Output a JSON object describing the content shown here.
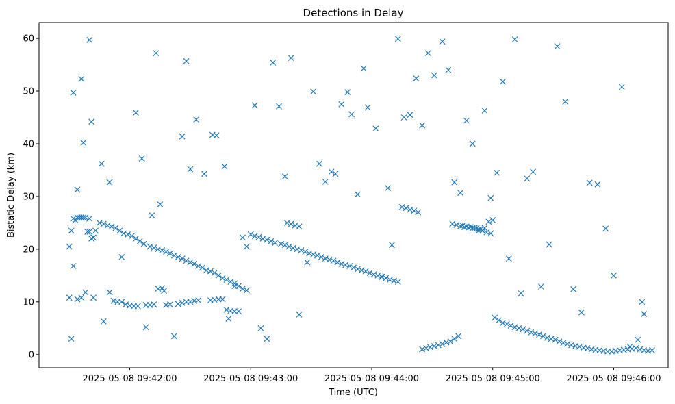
{
  "chart_data": {
    "type": "scatter",
    "title": "Detections in Delay",
    "xlabel": "Time (UTC)",
    "ylabel": "Bistatic Delay (km)",
    "x_unit": "time (UTC), 2025-05-08",
    "xlim": [
      "2025-05-08 09:41:15",
      "2025-05-08 09:46:27"
    ],
    "ylim": [
      -2.5,
      63
    ],
    "x_ticks": [
      "2025-05-08 09:42:00",
      "2025-05-08 09:43:00",
      "2025-05-08 09:44:00",
      "2025-05-08 09:45:00",
      "2025-05-08 09:46:00"
    ],
    "y_ticks": [
      0,
      10,
      20,
      30,
      40,
      50,
      60
    ],
    "marker": "x",
    "color": "#1f77b4",
    "grid": false,
    "series": [
      {
        "x": [
          "09:41:30",
          "09:41:31",
          "09:41:32",
          "09:41:33",
          "09:41:34",
          "09:41:35",
          "09:41:36",
          "09:41:37",
          "09:41:38",
          "09:41:39",
          "09:41:40",
          "09:41:41",
          "09:41:42",
          "09:41:43",
          "09:41:45",
          "09:41:47",
          "09:41:49",
          "09:41:51",
          "09:41:53",
          "09:41:55",
          "09:41:57",
          "09:41:59",
          "09:42:01",
          "09:42:03",
          "09:42:05",
          "09:42:07",
          "09:42:10",
          "09:42:12",
          "09:42:14",
          "09:42:16",
          "09:42:18",
          "09:42:20",
          "09:42:22",
          "09:42:24",
          "09:42:26",
          "09:42:28",
          "09:42:30",
          "09:42:32",
          "09:42:34",
          "09:42:36",
          "09:42:38",
          "09:42:40",
          "09:42:42",
          "09:42:44",
          "09:42:46",
          "09:42:48",
          "09:42:50",
          "09:42:52",
          "09:42:54",
          "09:42:56",
          "09:42:58",
          "09:43:00",
          "09:43:02",
          "09:43:04",
          "09:43:06",
          "09:43:08",
          "09:43:10",
          "09:43:12",
          "09:43:15",
          "09:43:17",
          "09:43:19",
          "09:43:21",
          "09:43:23",
          "09:43:25",
          "09:43:27",
          "09:43:29",
          "09:43:31",
          "09:43:33",
          "09:43:35",
          "09:43:37",
          "09:43:39",
          "09:43:41",
          "09:43:43",
          "09:43:45",
          "09:43:47",
          "09:43:49",
          "09:43:51",
          "09:43:53",
          "09:43:55",
          "09:43:57",
          "09:43:59",
          "09:44:01",
          "09:44:03",
          "09:44:05",
          "09:44:07",
          "09:44:09",
          "09:44:11",
          "09:44:13",
          "09:44:15",
          "09:44:17",
          "09:44:19",
          "09:44:21",
          "09:44:23",
          "09:44:25",
          "09:44:27",
          "09:44:29",
          "09:44:31",
          "09:44:33",
          "09:44:35",
          "09:44:37",
          "09:44:39",
          "09:44:41",
          "09:44:43",
          "09:44:45",
          "09:44:47",
          "09:44:49",
          "09:44:51",
          "09:44:53",
          "09:44:55",
          "09:44:57",
          "09:44:59",
          "09:45:01",
          "09:45:03",
          "09:45:05",
          "09:45:07",
          "09:45:09",
          "09:45:11",
          "09:45:13",
          "09:45:15",
          "09:45:17",
          "09:45:19",
          "09:45:21",
          "09:45:23",
          "09:45:25",
          "09:45:27",
          "09:45:29",
          "09:45:31",
          "09:45:33",
          "09:45:35",
          "09:45:37",
          "09:45:39",
          "09:45:41",
          "09:45:43",
          "09:45:45",
          "09:45:47",
          "09:45:49",
          "09:45:51",
          "09:45:53",
          "09:45:55",
          "09:45:57",
          "09:45:59",
          "09:46:01",
          "09:46:03",
          "09:46:05",
          "09:46:07",
          "09:46:09",
          "09:46:11",
          "09:46:13",
          "09:46:15",
          "09:46:17",
          "09:46:19",
          "09:41:30",
          "09:41:32",
          "09:41:34",
          "09:41:36",
          "09:41:38",
          "09:41:40",
          "09:41:42",
          "09:41:50",
          "09:41:52",
          "09:41:54",
          "09:41:56",
          "09:41:58",
          "09:42:00",
          "09:42:02",
          "09:42:04",
          "09:42:08",
          "09:42:10",
          "09:42:12",
          "09:42:14",
          "09:42:16",
          "09:42:18",
          "09:42:20",
          "09:42:24",
          "09:42:26",
          "09:42:28",
          "09:42:30",
          "09:42:32",
          "09:42:34",
          "09:42:40",
          "09:42:42",
          "09:42:44",
          "09:42:46",
          "09:42:48",
          "09:42:50",
          "09:42:52",
          "09:42:54",
          "09:43:18",
          "09:43:20",
          "09:43:22",
          "09:43:24",
          "09:44:40",
          "09:44:42",
          "09:44:44",
          "09:44:46",
          "09:44:48",
          "09:44:50",
          "09:44:52",
          "09:44:54",
          "09:44:56",
          "09:44:58",
          "09:45:00",
          "09:41:40",
          "09:41:36",
          "09:41:32",
          "09:41:31",
          "09:41:34",
          "09:41:37",
          "09:41:36",
          "09:41:41",
          "09:41:46",
          "09:41:47",
          "09:41:50",
          "09:41:56",
          "09:42:03",
          "09:42:06",
          "09:42:08",
          "09:42:11",
          "09:42:13",
          "09:42:15",
          "09:42:17",
          "09:42:22",
          "09:42:26",
          "09:42:28",
          "09:42:30",
          "09:42:33",
          "09:42:37",
          "09:42:41",
          "09:42:43",
          "09:42:47",
          "09:42:49",
          "09:42:52",
          "09:42:56",
          "09:42:58",
          "09:43:02",
          "09:43:05",
          "09:43:08",
          "09:43:11",
          "09:43:14",
          "09:43:17",
          "09:43:20",
          "09:43:24",
          "09:43:28",
          "09:43:31",
          "09:43:34",
          "09:43:37",
          "09:43:40",
          "09:43:42",
          "09:43:45",
          "09:43:48",
          "09:43:50",
          "09:43:53",
          "09:43:56",
          "09:43:58",
          "09:44:02",
          "09:44:05",
          "09:44:08",
          "09:44:10",
          "09:44:13",
          "09:44:16",
          "09:44:19",
          "09:44:22",
          "09:44:25",
          "09:44:28",
          "09:44:31",
          "09:44:35",
          "09:44:38",
          "09:44:41",
          "09:44:44",
          "09:44:47",
          "09:44:50",
          "09:44:53",
          "09:44:56",
          "09:44:59",
          "09:45:02",
          "09:45:05",
          "09:45:08",
          "09:45:11",
          "09:45:14",
          "09:45:17",
          "09:45:20",
          "09:45:24",
          "09:45:28",
          "09:45:32",
          "09:45:36",
          "09:45:40",
          "09:45:44",
          "09:45:48",
          "09:45:52",
          "09:45:56",
          "09:46:00",
          "09:46:04",
          "09:46:08",
          "09:46:12",
          "09:46:14",
          "09:46:15"
        ],
        "y": [
          20.5,
          23.5,
          16.8,
          25.5,
          26.0,
          26.0,
          26.0,
          26.0,
          26.0,
          23.3,
          23.3,
          22.0,
          22.2,
          23.5,
          25.0,
          24.8,
          24.5,
          24.3,
          24.0,
          23.5,
          23.0,
          22.8,
          22.5,
          22.0,
          21.5,
          21.0,
          20.5,
          20.3,
          20.0,
          19.8,
          19.5,
          19.2,
          18.8,
          18.5,
          18.2,
          17.8,
          17.5,
          17.2,
          16.8,
          16.5,
          16.0,
          15.8,
          15.5,
          15.0,
          14.5,
          14.2,
          13.8,
          13.5,
          13.0,
          12.5,
          12.2,
          22.8,
          22.5,
          22.3,
          22.0,
          21.8,
          21.5,
          21.2,
          21.0,
          20.8,
          20.5,
          20.2,
          20.0,
          19.8,
          19.5,
          19.2,
          19.0,
          18.8,
          18.5,
          18.2,
          18.0,
          17.8,
          17.5,
          17.2,
          17.0,
          16.8,
          16.5,
          16.2,
          16.0,
          15.8,
          15.5,
          15.2,
          15.0,
          14.8,
          14.5,
          14.2,
          14.0,
          13.8,
          28.0,
          27.8,
          27.5,
          27.3,
          27.0,
          1.0,
          1.2,
          1.4,
          1.6,
          1.8,
          2.0,
          2.3,
          2.5,
          3.0,
          3.5,
          24.5,
          24.3,
          24.2,
          24.0,
          23.8,
          23.5,
          23.2,
          23.0,
          7.0,
          6.5,
          6.0,
          5.8,
          5.5,
          5.2,
          5.0,
          4.8,
          4.5,
          4.2,
          4.0,
          3.8,
          3.5,
          3.2,
          3.0,
          2.8,
          2.5,
          2.2,
          2.0,
          1.8,
          1.6,
          1.5,
          1.3,
          1.2,
          1.0,
          0.9,
          0.8,
          0.7,
          0.6,
          0.6,
          0.7,
          0.8,
          0.9,
          1.0,
          1.1,
          1.2,
          1.0,
          0.8,
          0.7,
          0.8,
          10.8,
          25.8,
          10.5,
          26.0,
          11.8,
          25.8,
          10.8,
          11.8,
          10.2,
          10.0,
          10.0,
          9.5,
          9.3,
          9.2,
          9.2,
          9.4,
          9.4,
          9.5,
          12.5,
          12.6,
          9.4,
          9.5,
          9.6,
          9.8,
          10.0,
          10.0,
          10.2,
          10.3,
          10.3,
          10.4,
          10.5,
          10.5,
          8.5,
          8.3,
          8.2,
          8.2,
          25.0,
          24.8,
          24.5,
          24.3,
          24.8,
          24.6,
          24.4,
          24.2,
          24.1,
          24.0,
          24.0,
          23.8,
          24.0,
          25.2,
          25.5,
          59.7,
          52.3,
          49.7,
          3.0,
          31.3,
          40.2,
          10.8,
          44.2,
          36.2,
          6.3,
          32.7,
          18.5,
          45.9,
          37.2,
          5.2,
          26.4,
          57.2,
          28.5,
          12.1,
          3.5,
          41.4,
          55.7,
          35.2,
          44.6,
          34.3,
          41.7,
          41.6,
          35.7,
          6.8,
          13.0,
          22.2,
          20.5,
          47.3,
          5.0,
          3.0,
          55.4,
          47.1,
          33.8,
          56.3,
          7.6,
          17.5,
          49.9,
          36.2,
          32.8,
          34.7,
          34.3,
          47.5,
          49.8,
          45.6,
          30.4,
          54.3,
          46.9,
          42.9,
          14.7,
          31.6,
          20.8,
          59.9,
          45.0,
          45.5,
          52.4,
          43.5,
          57.2,
          53.0,
          59.4,
          54.0,
          32.7,
          30.7,
          44.4,
          40.0,
          23.5,
          46.3,
          29.7,
          34.5,
          51.8,
          18.2,
          59.8,
          11.6,
          33.4,
          34.7,
          12.9,
          20.9,
          58.5,
          48.0,
          12.4,
          8.0,
          32.6,
          32.3,
          23.9,
          15.0,
          50.8,
          1.5,
          2.8,
          10.0,
          7.7
        ]
      }
    ]
  }
}
